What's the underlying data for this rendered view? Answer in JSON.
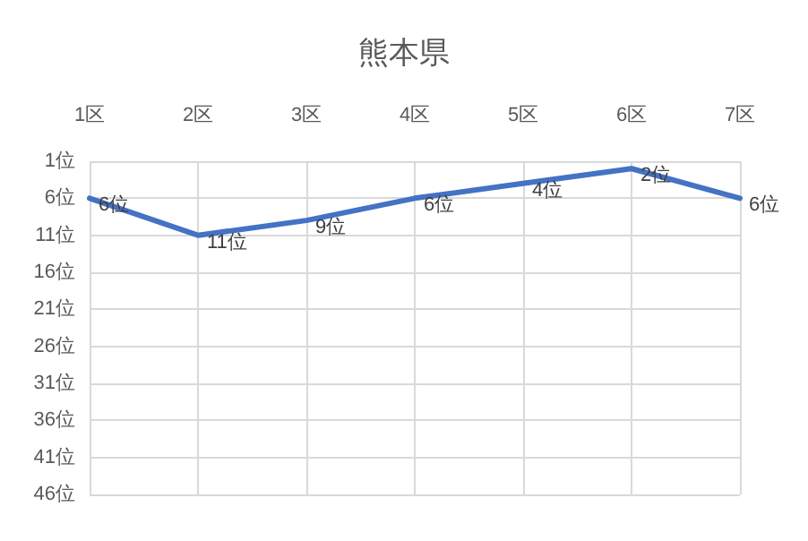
{
  "chart_data": {
    "type": "line",
    "title": "熊本県",
    "categories": [
      "1区",
      "2区",
      "3区",
      "4区",
      "5区",
      "6区",
      "7区"
    ],
    "series": [
      {
        "color": "#4472c4",
        "values": [
          6,
          11,
          9,
          6,
          4,
          2,
          6
        ],
        "value_labels": [
          "6位",
          "11位",
          "9位",
          "6位",
          "4位",
          "2位",
          "6位"
        ]
      }
    ],
    "ylim": [
      46,
      1
    ],
    "yticks": [
      {
        "value": 1,
        "label": "1位"
      },
      {
        "value": 6,
        "label": "6位"
      },
      {
        "value": 11,
        "label": "11位"
      },
      {
        "value": 16,
        "label": "16位"
      },
      {
        "value": 21,
        "label": "21位"
      },
      {
        "value": 26,
        "label": "26位"
      },
      {
        "value": 31,
        "label": "31位"
      },
      {
        "value": 36,
        "label": "36位"
      },
      {
        "value": 41,
        "label": "41位"
      },
      {
        "value": 46,
        "label": "46位"
      }
    ],
    "grid": true,
    "marker": "none",
    "line_style": "solid"
  }
}
